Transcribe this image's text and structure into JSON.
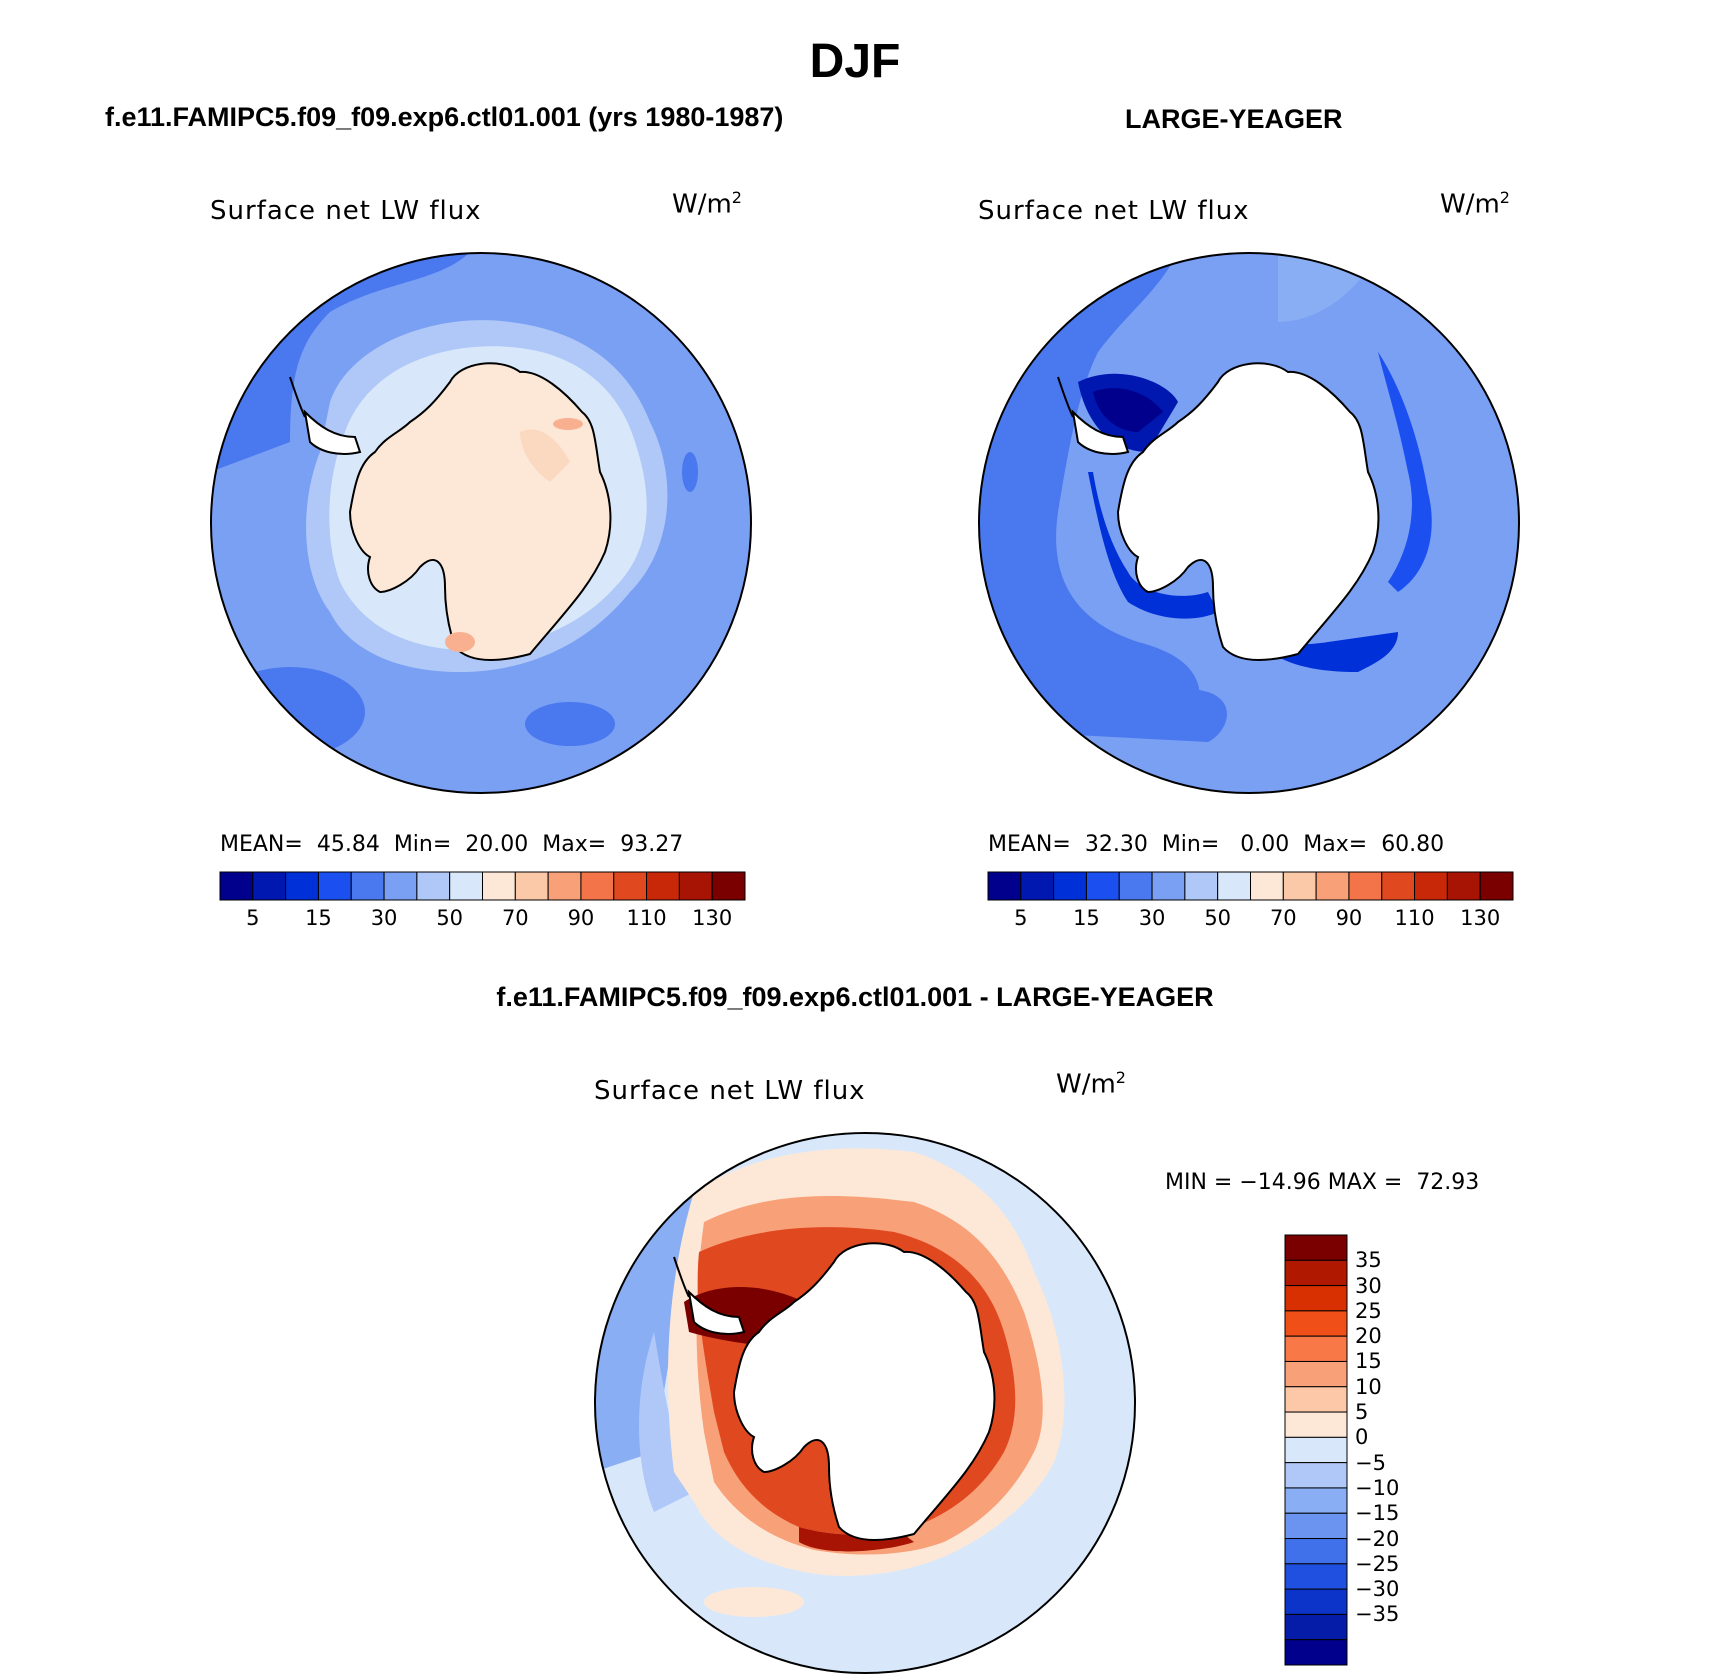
{
  "page": {
    "season": "DJF",
    "test_case": "f.e11.FAMIPC5.f09_f09.exp6.ctl01.001 (yrs 1980-1987)",
    "obs_case": "LARGE-YEAGER",
    "diff_title": "f.e11.FAMIPC5.f09_f09.exp6.ctl01.001 - LARGE-YEAGER"
  },
  "panels": {
    "test": {
      "variable": "Surface net LW flux",
      "units_base": "W/m",
      "units_exp": "2",
      "stats": {
        "mean_label": "MEAN=",
        "mean": "45.84",
        "min_label": "Min=",
        "min": "20.00",
        "max_label": "Max=",
        "max": "93.27"
      }
    },
    "obs": {
      "variable": "Surface net LW flux",
      "units_base": "W/m",
      "units_exp": "2",
      "stats": {
        "mean_label": "MEAN=",
        "mean": "32.30",
        "min_label": "Min=",
        "min": "0.00",
        "max_label": "Max=",
        "max": "60.80"
      }
    },
    "diff": {
      "variable": "Surface net LW flux",
      "units_base": "W/m",
      "units_exp": "2",
      "stats": {
        "min_label": "MIN =",
        "min": "−14.96",
        "max_label": "MAX =",
        "max": "72.93"
      }
    }
  },
  "colorbars": {
    "abs": {
      "colors": [
        "#00008c",
        "#0018b0",
        "#0030d8",
        "#1c4ff0",
        "#4a78ee",
        "#7aa0f4",
        "#b0c8f8",
        "#d8e8fa",
        "#fde8d8",
        "#fbc8a8",
        "#f8a078",
        "#f27448",
        "#e04820",
        "#c82808",
        "#a81404",
        "#7a0000"
      ],
      "labels": [
        "5",
        "15",
        "30",
        "50",
        "70",
        "90",
        "110",
        "130"
      ]
    },
    "diff": {
      "colors": [
        "#7a0000",
        "#b01800",
        "#d83000",
        "#f05018",
        "#f87848",
        "#f8a078",
        "#fcc8a8",
        "#fde8d8",
        "#d8e8fa",
        "#b0c8f8",
        "#8aaef4",
        "#6a94f0",
        "#4070ea",
        "#2050e0",
        "#0c34c8",
        "#041ca8",
        "#00008c"
      ],
      "labels": [
        "35",
        "30",
        "25",
        "20",
        "15",
        "10",
        "5",
        "0",
        "−5",
        "−10",
        "−15",
        "−20",
        "−25",
        "−30",
        "−35"
      ]
    }
  }
}
